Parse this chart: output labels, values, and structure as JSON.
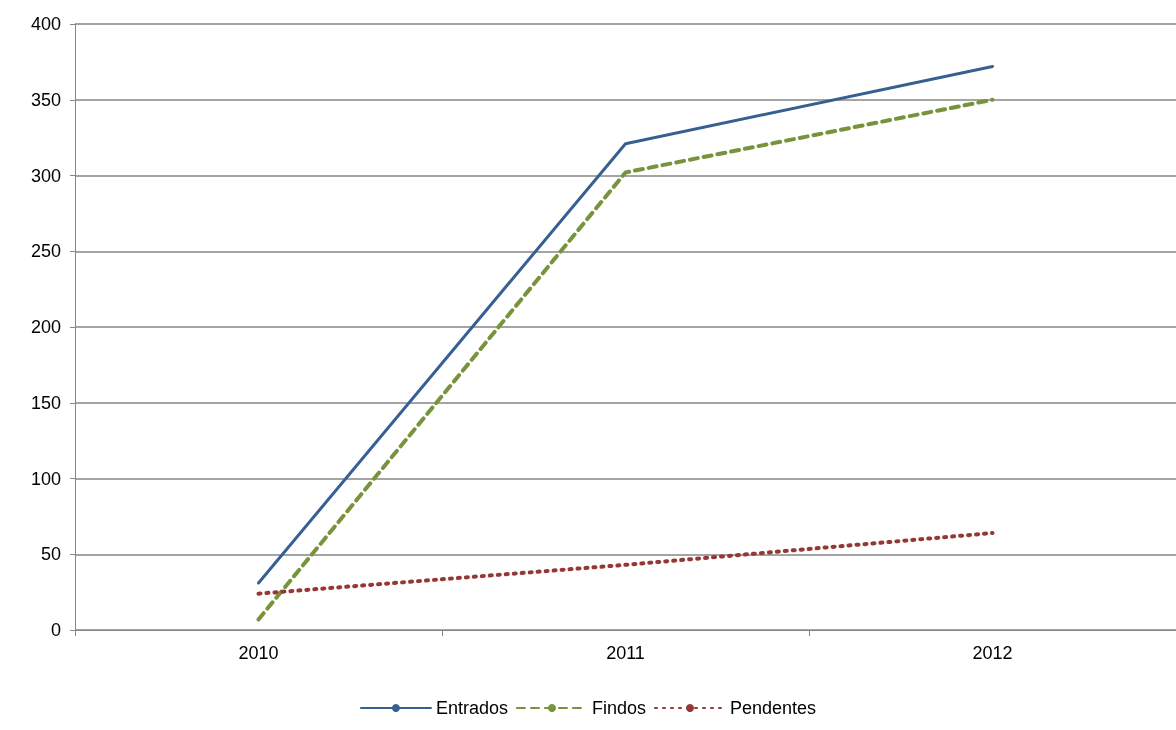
{
  "chart_data": {
    "type": "line",
    "categories": [
      "2010",
      "2011",
      "2012"
    ],
    "series": [
      {
        "name": "Entrados",
        "color": "#376092",
        "values": [
          31,
          321,
          372
        ],
        "line_style": "solid"
      },
      {
        "name": "Findos",
        "color": "#77933c",
        "values": [
          7,
          302,
          350
        ],
        "line_style": "dashed"
      },
      {
        "name": "Pendentes",
        "color": "#953735",
        "values": [
          24,
          43,
          64
        ],
        "line_style": "dotted"
      }
    ],
    "ylim": [
      0,
      400
    ],
    "yticks": [
      0,
      50,
      100,
      150,
      200,
      250,
      300,
      350,
      400
    ],
    "grid": "y",
    "legend": "bottom",
    "marker": "none"
  }
}
